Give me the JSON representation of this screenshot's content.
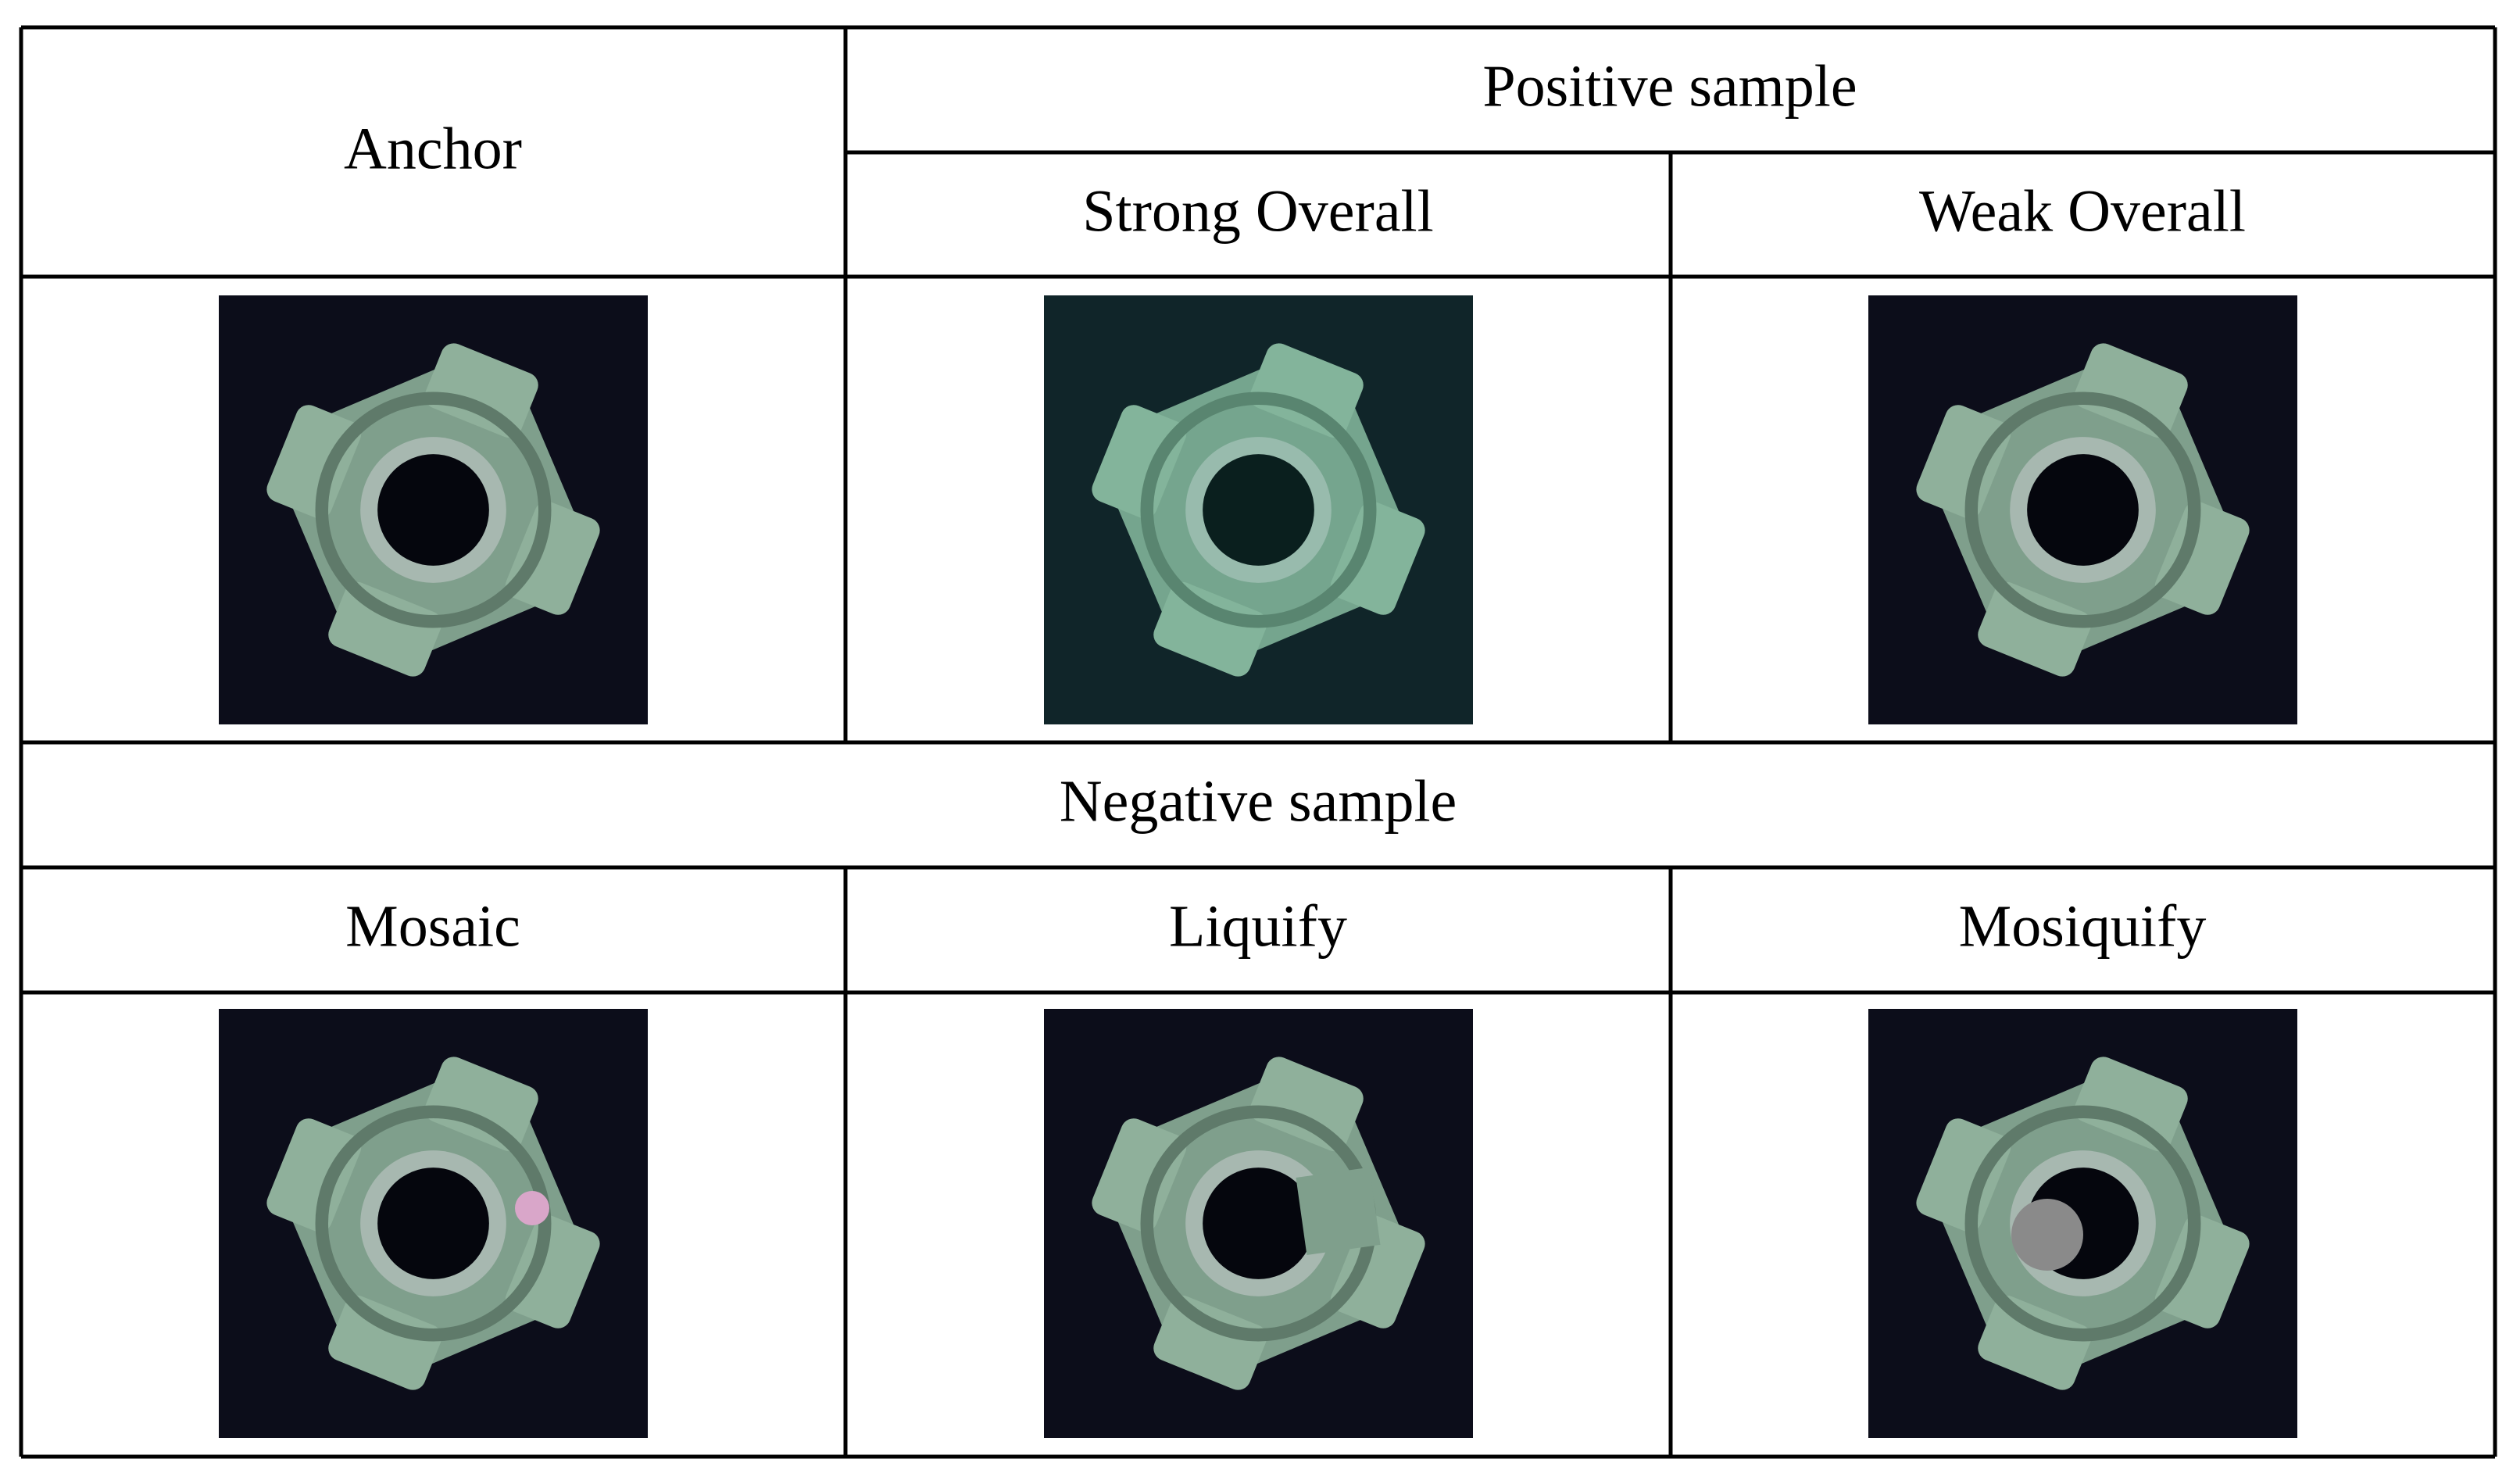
{
  "table": {
    "header": {
      "anchor": "Anchor",
      "positive": "Positive sample",
      "strong": "Strong Overall",
      "weak": "Weak Overall"
    },
    "negative": "Negative sample",
    "negative_labels": [
      "Mosaic",
      "Liquify",
      "Mosiquify"
    ]
  }
}
